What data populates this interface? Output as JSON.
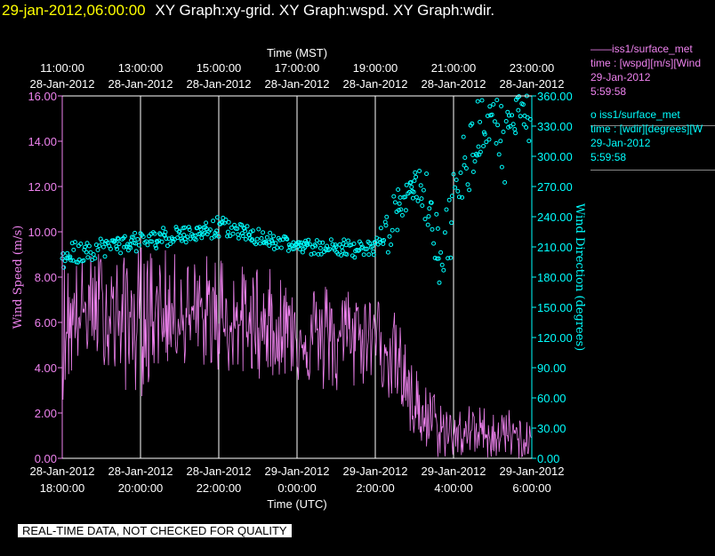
{
  "header": {
    "timestamp": "29-jan-2012,06:00:00",
    "graph_titles": "XY Graph:xy-grid.  XY Graph:wspd.  XY Graph:wdir."
  },
  "legend": {
    "wspd": {
      "line1": "——iss1/surface_met",
      "line2": "time : [wspd][m/s][Wind",
      "line3": "29-Jan-2012",
      "line4": "5:59:58"
    },
    "wdir": {
      "line1": "o  iss1/surface_met",
      "line2": "time : [wdir][degrees][W",
      "line3": "29-Jan-2012",
      "line4": "5:59:58"
    }
  },
  "footer_note": "REAL-TIME DATA, NOT CHECKED FOR QUALITY",
  "colors": {
    "wspd": "#ee82ee",
    "wdir": "#00ffff",
    "grid": "#ffffff",
    "background": "#000000"
  },
  "chart_data": {
    "type": "line",
    "top_axis": {
      "label": "Time (MST)",
      "ticks": [
        {
          "time": "11:00:00",
          "date": "28-Jan-2012"
        },
        {
          "time": "13:00:00",
          "date": "28-Jan-2012"
        },
        {
          "time": "15:00:00",
          "date": "28-Jan-2012"
        },
        {
          "time": "17:00:00",
          "date": "28-Jan-2012"
        },
        {
          "time": "19:00:00",
          "date": "28-Jan-2012"
        },
        {
          "time": "21:00:00",
          "date": "28-Jan-2012"
        },
        {
          "time": "23:00:00",
          "date": "28-Jan-2012"
        }
      ]
    },
    "bottom_axis": {
      "label": "Time (UTC)",
      "ticks": [
        {
          "date": "28-Jan-2012",
          "time": "18:00:00"
        },
        {
          "date": "28-Jan-2012",
          "time": "20:00:00"
        },
        {
          "date": "28-Jan-2012",
          "time": "22:00:00"
        },
        {
          "date": "29-Jan-2012",
          "time": "0:00:00"
        },
        {
          "date": "29-Jan-2012",
          "time": "2:00:00"
        },
        {
          "date": "29-Jan-2012",
          "time": "4:00:00"
        },
        {
          "date": "29-Jan-2012",
          "time": "6:00:00"
        }
      ],
      "range_utc": [
        "2012-01-28 18:00:00",
        "2012-01-29 06:00:00"
      ]
    },
    "left_axis": {
      "label": "Wind Speed (m/s)",
      "range": [
        0,
        16
      ],
      "ticks": [
        "0.00",
        "2.00",
        "4.00",
        "6.00",
        "8.00",
        "10.00",
        "12.00",
        "14.00",
        "16.00"
      ]
    },
    "right_axis": {
      "label": "Wind Direction (degrees)",
      "range": [
        0,
        360
      ],
      "ticks": [
        "0.00",
        "30.00",
        "60.00",
        "90.00",
        "120.00",
        "150.00",
        "180.00",
        "210.00",
        "240.00",
        "270.00",
        "300.00",
        "330.00",
        "360.00"
      ]
    },
    "grid": "vertical",
    "series": [
      {
        "style": "line",
        "color": "#ee82ee",
        "x_utc": [
          "2012-01-28 18:00",
          "2012-01-28 18:30",
          "2012-01-28 19:00",
          "2012-01-28 19:30",
          "2012-01-28 20:00",
          "2012-01-28 20:30",
          "2012-01-28 21:00",
          "2012-01-28 21:30",
          "2012-01-28 22:00",
          "2012-01-28 22:30",
          "2012-01-28 23:00",
          "2012-01-28 23:30",
          "2012-01-29 00:00",
          "2012-01-29 00:30",
          "2012-01-29 01:00",
          "2012-01-29 01:30",
          "2012-01-29 02:00",
          "2012-01-29 02:30",
          "2012-01-29 03:00",
          "2012-01-29 03:30",
          "2012-01-29 04:00",
          "2012-01-29 04:30",
          "2012-01-29 05:00",
          "2012-01-29 05:30",
          "2012-01-29 06:00"
        ],
        "mean": [
          5.8,
          6.4,
          6.6,
          6.3,
          6.2,
          6.5,
          6.3,
          6.2,
          6.1,
          5.9,
          5.8,
          5.6,
          5.5,
          5.3,
          5.3,
          5.5,
          5.6,
          4.5,
          2.3,
          1.3,
          1.0,
          1.2,
          1.0,
          1.0,
          0.6
        ],
        "upper": [
          9.0,
          8.9,
          9.3,
          8.8,
          9.5,
          9.3,
          9.0,
          8.8,
          9.5,
          8.5,
          8.7,
          8.2,
          8.4,
          7.8,
          7.9,
          7.5,
          7.3,
          6.5,
          4.1,
          3.0,
          2.2,
          2.4,
          2.3,
          2.2,
          1.4
        ],
        "lower": [
          2.5,
          4.5,
          4.3,
          3.0,
          2.6,
          4.0,
          4.2,
          4.0,
          3.8,
          3.5,
          3.5,
          3.6,
          3.4,
          3.0,
          2.6,
          2.9,
          3.6,
          2.0,
          0.5,
          0.0,
          0.0,
          0.0,
          0.0,
          0.0,
          0.0
        ]
      },
      {
        "style": "scatter",
        "color": "#00ffff",
        "x_utc": [
          "2012-01-28 18:00",
          "2012-01-28 18:30",
          "2012-01-28 19:00",
          "2012-01-28 19:30",
          "2012-01-28 20:00",
          "2012-01-28 20:30",
          "2012-01-28 21:00",
          "2012-01-28 21:30",
          "2012-01-28 22:00",
          "2012-01-28 22:30",
          "2012-01-28 23:00",
          "2012-01-28 23:30",
          "2012-01-29 00:00",
          "2012-01-29 00:30",
          "2012-01-29 01:00",
          "2012-01-29 01:30",
          "2012-01-29 02:00",
          "2012-01-29 02:20",
          "2012-01-29 02:40",
          "2012-01-29 03:00",
          "2012-01-29 03:20",
          "2012-01-29 03:40",
          "2012-01-29 04:00",
          "2012-01-29 04:20",
          "2012-01-29 04:40",
          "2012-01-29 05:00",
          "2012-01-29 05:20",
          "2012-01-29 05:40",
          "2012-01-29 06:00"
        ],
        "y": [
          200,
          205,
          210,
          212,
          215,
          220,
          222,
          225,
          230,
          225,
          220,
          215,
          210,
          210,
          212,
          205,
          210,
          225,
          255,
          270,
          260,
          195,
          250,
          300,
          330,
          350,
          310,
          355,
          340
        ],
        "spread": [
          20,
          15,
          15,
          12,
          15,
          15,
          12,
          12,
          15,
          12,
          12,
          12,
          10,
          12,
          12,
          15,
          15,
          30,
          40,
          20,
          40,
          40,
          60,
          60,
          50,
          40,
          60,
          40,
          40
        ]
      }
    ]
  }
}
